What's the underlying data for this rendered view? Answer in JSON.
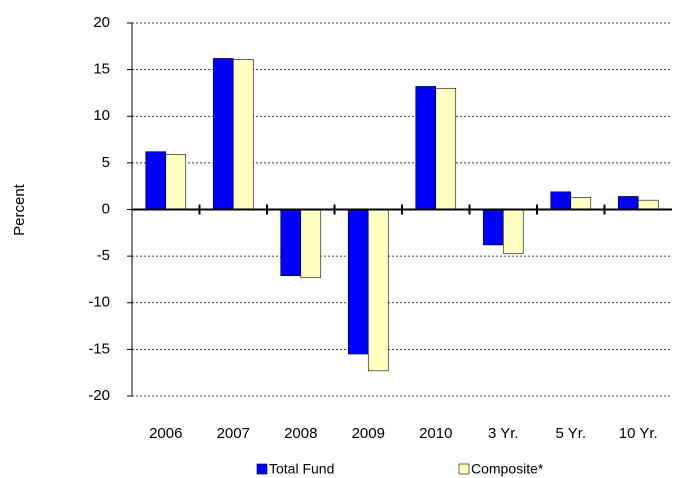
{
  "chart_data": {
    "type": "bar",
    "y_label": "Percent",
    "categories": [
      "2006",
      "2007",
      "2008",
      "2009",
      "2010",
      "3 Yr.",
      "5 Yr.",
      "10 Yr."
    ],
    "series": [
      {
        "name": "Total Fund",
        "color": "#0000ff",
        "values": [
          6.2,
          16.2,
          -7.1,
          -15.5,
          13.2,
          -3.8,
          1.9,
          1.4
        ]
      },
      {
        "name": "Composite*",
        "color": "#ffffc0",
        "values": [
          5.9,
          16.1,
          -7.3,
          -17.3,
          13.0,
          -4.7,
          1.3,
          1.0
        ]
      }
    ],
    "ylim": [
      -20,
      20
    ],
    "yticks": [
      -20,
      -15,
      -10,
      -5,
      0,
      5,
      10,
      15,
      20
    ],
    "grid": true,
    "legend": "bottom"
  }
}
